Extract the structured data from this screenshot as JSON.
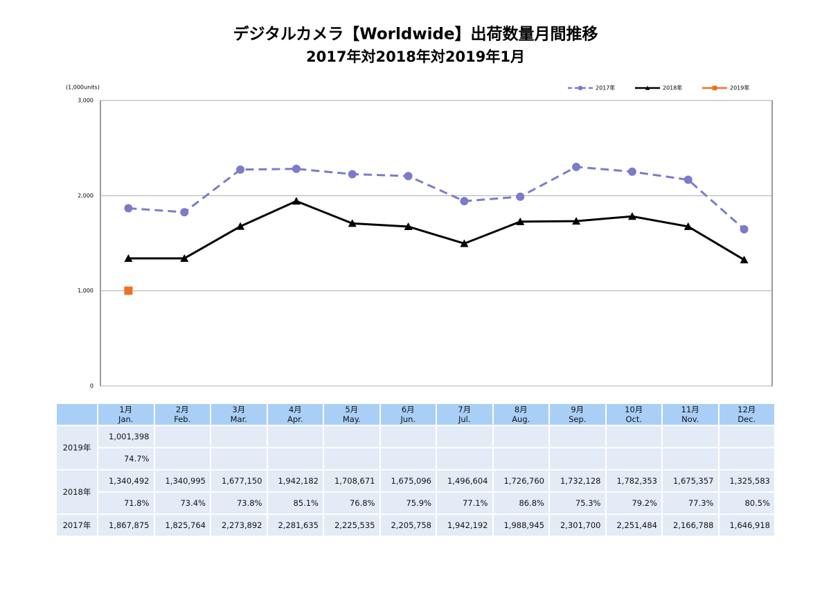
{
  "chart_data": {
    "type": "line",
    "title": "デジタルカメラ【Worldwide】出荷数量月間推移",
    "subtitle": "2017年対2018年対2019年1月",
    "y_unit": "(1,000units)",
    "ylim": [
      0,
      3000
    ],
    "yticks": [
      0,
      {
        "value": 1000,
        "label": "1,000"
      },
      {
        "value": 2000,
        "label": "2,000"
      },
      {
        "value": 3000,
        "label": "3,000"
      }
    ],
    "grid": true,
    "legend": "top-right",
    "series": [
      {
        "name": "2017年",
        "color": "#7b7bcc",
        "marker": "circle",
        "dashed": true,
        "values": [
          1867.875,
          1825.764,
          2273.892,
          2281.635,
          2225.535,
          2205.758,
          1942.192,
          1988.945,
          2301.7,
          2251.484,
          2166.788,
          1646.918
        ]
      },
      {
        "name": "2018年",
        "color": "#000000",
        "marker": "triangle",
        "dashed": false,
        "values": [
          1340.492,
          1340.995,
          1677.15,
          1942.182,
          1708.671,
          1675.096,
          1496.604,
          1726.76,
          1732.128,
          1782.353,
          1675.357,
          1325.583
        ]
      },
      {
        "name": "2019年",
        "color": "#f07020",
        "marker": "square",
        "dashed": false,
        "values": [
          1001.398
        ]
      }
    ]
  },
  "table": {
    "columns": [
      {
        "ja": "1月",
        "en": "Jan."
      },
      {
        "ja": "2月",
        "en": "Feb."
      },
      {
        "ja": "3月",
        "en": "Mar."
      },
      {
        "ja": "4月",
        "en": "Apr."
      },
      {
        "ja": "5月",
        "en": "May."
      },
      {
        "ja": "6月",
        "en": "Jun."
      },
      {
        "ja": "7月",
        "en": "Jul."
      },
      {
        "ja": "8月",
        "en": "Aug."
      },
      {
        "ja": "9月",
        "en": "Sep."
      },
      {
        "ja": "10月",
        "en": "Oct."
      },
      {
        "ja": "11月",
        "en": "Nov."
      },
      {
        "ja": "12月",
        "en": "Dec."
      }
    ],
    "rows": [
      {
        "label": "2019年",
        "lines": [
          [
            "1,001,398"
          ],
          [
            "74.7%"
          ]
        ]
      },
      {
        "label": "2018年",
        "lines": [
          [
            "1,340,492",
            "1,340,995",
            "1,677,150",
            "1,942,182",
            "1,708,671",
            "1,675,096",
            "1,496,604",
            "1,726,760",
            "1,732,128",
            "1,782,353",
            "1,675,357",
            "1,325,583"
          ],
          [
            "71.8%",
            "73.4%",
            "73.8%",
            "85.1%",
            "76.8%",
            "75.9%",
            "77.1%",
            "86.8%",
            "75.3%",
            "79.2%",
            "77.3%",
            "80.5%"
          ]
        ]
      },
      {
        "label": "2017年",
        "lines": [
          [
            "1,867,875",
            "1,825,764",
            "2,273,892",
            "2,281,635",
            "2,225,535",
            "2,205,758",
            "1,942,192",
            "1,988,945",
            "2,301,700",
            "2,251,484",
            "2,166,788",
            "1,646,918"
          ]
        ]
      }
    ]
  }
}
